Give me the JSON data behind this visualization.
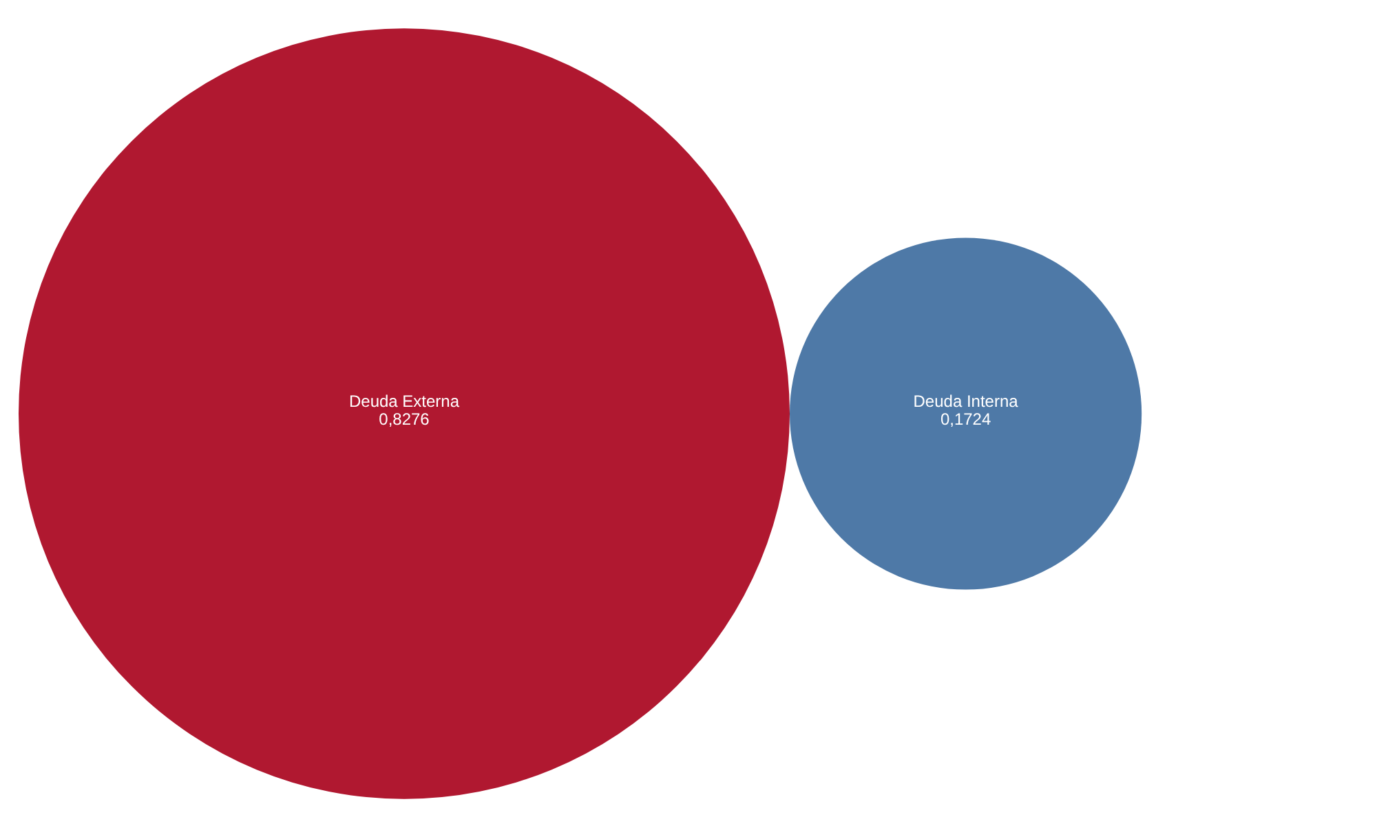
{
  "chart_data": {
    "type": "other",
    "categories": [
      "Deuda Externa",
      "Deuda Interna"
    ],
    "values": [
      0.8276,
      0.1724
    ],
    "value_labels": [
      "0,8276",
      "0,1724"
    ],
    "colors": [
      "#b01830",
      "#4e79a7"
    ]
  }
}
